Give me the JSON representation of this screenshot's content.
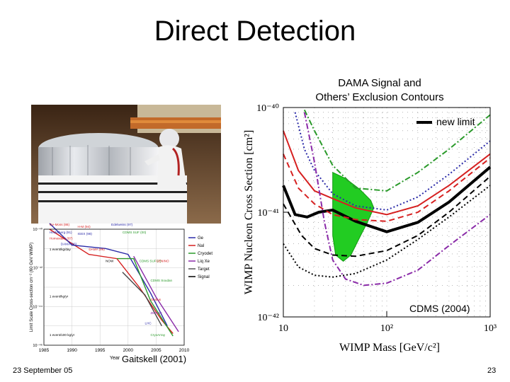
{
  "slide": {
    "title": "Direct Detection",
    "subtitle_line1": "DAMA Signal and",
    "subtitle_line2": "Others’ Exclusion Contours",
    "caption_right": "CDMS (2004)",
    "caption_left": "Gaitskell (2001)",
    "footer_date": "23 September 05",
    "page_number": "23"
  },
  "chart_data": [
    {
      "type": "line",
      "xlabel": "WIMP Mass [GeV/c²]",
      "ylabel": "WIMP Nucleon Cross Section [cm²]",
      "x_scale": "log",
      "y_scale": "log",
      "xlim": [
        10,
        1000
      ],
      "ylim": [
        1e-42,
        1e-40
      ],
      "x_ticks": [
        "10",
        "10²",
        "10³"
      ],
      "y_ticks": [
        "10⁻⁴⁰",
        "10⁻⁴¹",
        "10⁻⁴²"
      ],
      "legend": [
        {
          "label": "new limit",
          "color": "#000000",
          "position": "top-right"
        }
      ],
      "series": [
        {
          "name": "new limit",
          "color": "#000000",
          "style": "solid-thick",
          "points": [
            [
              10,
              1.8e-41
            ],
            [
              13,
              9.5e-42
            ],
            [
              17,
              9e-42
            ],
            [
              22,
              1e-41
            ],
            [
              30,
              1.05e-41
            ],
            [
              50,
              8.2e-42
            ],
            [
              100,
              6.5e-42
            ],
            [
              200,
              8e-42
            ],
            [
              400,
              1.25e-41
            ],
            [
              1000,
              2.7e-41
            ]
          ]
        },
        {
          "color": "#d62020",
          "style": "solid",
          "points": [
            [
              10,
              6e-41
            ],
            [
              14,
              2.5e-41
            ],
            [
              20,
              1.6e-41
            ],
            [
              30,
              1.35e-41
            ],
            [
              50,
              1.1e-41
            ],
            [
              100,
              9.5e-42
            ],
            [
              200,
              1.15e-41
            ],
            [
              400,
              1.8e-41
            ],
            [
              1000,
              3.6e-41
            ]
          ]
        },
        {
          "color": "#d62020",
          "style": "dashed",
          "points": [
            [
              10,
              3.6e-41
            ],
            [
              14,
              1.7e-41
            ],
            [
              20,
              1.2e-41
            ],
            [
              30,
              9.5e-42
            ],
            [
              50,
              8.5e-42
            ],
            [
              100,
              8.2e-42
            ],
            [
              200,
              1e-41
            ],
            [
              400,
              1.6e-41
            ],
            [
              1000,
              3.3e-41
            ]
          ]
        },
        {
          "color": "#000000",
          "style": "dashed",
          "points": [
            [
              10,
              1.2e-41
            ],
            [
              15,
              6e-42
            ],
            [
              20,
              4.5e-42
            ],
            [
              30,
              3.9e-42
            ],
            [
              50,
              3.8e-42
            ],
            [
              100,
              4.3e-42
            ],
            [
              200,
              6e-42
            ],
            [
              400,
              1e-41
            ],
            [
              1000,
              2.2e-41
            ]
          ]
        },
        {
          "color": "#000000",
          "style": "dotted",
          "points": [
            [
              10,
              5e-42
            ],
            [
              14,
              3e-42
            ],
            [
              20,
              2.5e-42
            ],
            [
              30,
              2.4e-42
            ],
            [
              50,
              2.6e-42
            ],
            [
              100,
              3.5e-42
            ],
            [
              200,
              5.5e-42
            ],
            [
              400,
              9e-42
            ],
            [
              1000,
              1.8e-41
            ]
          ]
        },
        {
          "color": "#2a2aa8",
          "style": "dotted",
          "points": [
            [
              13,
              9e-41
            ],
            [
              16,
              4e-41
            ],
            [
              20,
              2.5e-41
            ],
            [
              30,
              1.5e-41
            ],
            [
              50,
              1.15e-41
            ],
            [
              100,
              1.05e-41
            ],
            [
              200,
              1.4e-41
            ],
            [
              400,
              2.3e-41
            ],
            [
              1000,
              4.8e-41
            ]
          ]
        },
        {
          "color": "#2a9a2a",
          "style": "dashdot",
          "points": [
            [
              16,
              9.5e-41
            ],
            [
              20,
              6e-41
            ],
            [
              30,
              2.8e-41
            ],
            [
              50,
              1.7e-41
            ],
            [
              100,
              1.6e-41
            ],
            [
              200,
              2.4e-41
            ],
            [
              400,
              4e-41
            ],
            [
              1000,
              8.5e-41
            ]
          ]
        },
        {
          "color": "#8a2aa8",
          "style": "dashdot",
          "points": [
            [
              16,
              9e-41
            ],
            [
              20,
              3e-41
            ],
            [
              25,
              8e-42
            ],
            [
              30,
              3.5e-42
            ],
            [
              40,
              2.3e-42
            ],
            [
              60,
              2e-42
            ],
            [
              100,
              2.1e-42
            ],
            [
              200,
              2.8e-42
            ],
            [
              400,
              4.8e-42
            ],
            [
              1000,
              9.5e-42
            ]
          ]
        }
      ],
      "regions": [
        {
          "label": "DAMA",
          "color": "#22cc22",
          "points": [
            [
              30,
              2.4e-41
            ],
            [
              40,
              2.1e-41
            ],
            [
              55,
              1.65e-41
            ],
            [
              70,
              1.3e-41
            ],
            [
              75,
              1.1e-41
            ],
            [
              65,
              8e-42
            ],
            [
              55,
              5.8e-42
            ],
            [
              45,
              3.9e-42
            ],
            [
              38,
              3.4e-42
            ],
            [
              32,
              3.9e-42
            ],
            [
              30,
              6e-42
            ]
          ]
        }
      ],
      "annotation": "CDMS (2004)"
    },
    {
      "type": "line",
      "title": "",
      "ylabel": "Limit Scale Cross-section cm⁻² (60 GeV WIMP)",
      "xlabel": "Year",
      "x_ticks": [
        "1985",
        "1990",
        "1995",
        "2000",
        "2005",
        "2010"
      ],
      "y_ticks": [
        "10⁻⁴⁰",
        "10⁻⁴²",
        "10⁻⁴⁴",
        "10⁻⁴⁶"
      ],
      "xlim": [
        1985,
        2010
      ],
      "y_scale": "log",
      "ylim": [
        1e-46,
        1e-40
      ],
      "legend_right": [
        {
          "label": "Ge",
          "color": "#2a2aa8"
        },
        {
          "label": "NaI",
          "color": "#d62020"
        },
        {
          "label": "Cryodet",
          "color": "#2a9a2a"
        },
        {
          "label": "Liq Xe",
          "color": "#8a2aa8"
        },
        {
          "label": "Target",
          "color": "#555555"
        },
        {
          "label": "Signal",
          "color": "#000000"
        }
      ],
      "labels": [
        "Ge-Moss (86)",
        "Heidelberg (91)",
        "Homestake (87)",
        "H-M (94)",
        "IGEX (98)",
        "DAMA (96)",
        "DAMA (99)",
        "Edelweiss (97)",
        "CDMS SUF (00)",
        "NOW",
        "CDMS SUF (?)",
        "GENINO",
        "CDMS Soudan",
        "Genius",
        "ZEPLIN",
        "LHC",
        "CryoArray",
        "1 event/kg/day",
        "1 event/kg/yr",
        "1 event/100 kg/yr"
      ],
      "series": [
        {
          "color": "#d62020",
          "points": [
            [
              1986,
              1e-40
            ],
            [
              1993,
              5e-42
            ],
            [
              1998,
              3e-42
            ],
            [
              2002,
              1e-43
            ],
            [
              2006,
              2e-45
            ],
            [
              2008,
              4e-46
            ]
          ]
        },
        {
          "color": "#2a2aa8",
          "points": [
            [
              1986,
              2e-40
            ],
            [
              1990,
              1.5e-41
            ],
            [
              1996,
              1e-41
            ],
            [
              2000,
              5e-42
            ],
            [
              2004,
              5e-44
            ],
            [
              2007,
              1e-45
            ]
          ]
        },
        {
          "color": "#2a9a2a",
          "points": [
            [
              1998,
              3e-42
            ],
            [
              2001,
              3e-42
            ],
            [
              2004,
              2e-44
            ],
            [
              2008,
              3e-46
            ]
          ]
        },
        {
          "color": "#8a2aa8",
          "points": [
            [
              2001,
              4e-42
            ],
            [
              2005,
              3e-44
            ],
            [
              2009,
              5e-46
            ]
          ]
        },
        {
          "color": "#444444",
          "points": [
            [
              1999,
              6e-43
            ],
            [
              2003,
              4e-44
            ],
            [
              2006,
              1e-45
            ]
          ]
        }
      ]
    }
  ]
}
